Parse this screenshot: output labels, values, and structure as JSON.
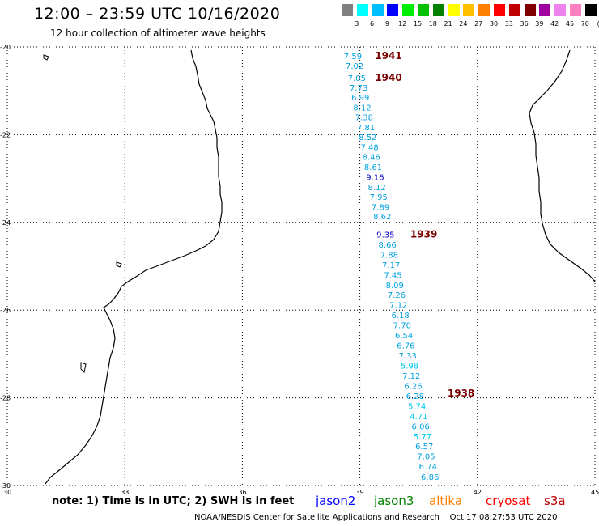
{
  "header": {
    "title": "12:00 – 23:59 UTC 10/16/2020",
    "subtitle": "12 hour collection of altimeter wave heights"
  },
  "colorbar": {
    "swatches": [
      "#808080",
      "#00ffff",
      "#00bfff",
      "#0000ff",
      "#00ee00",
      "#00c000",
      "#008000",
      "#ffff00",
      "#ffc000",
      "#ff8000",
      "#ff0000",
      "#c00000",
      "#800000",
      "#a000a0",
      "#ee82ee",
      "#ff80c0",
      "#000000"
    ],
    "labels": [
      "3",
      "6",
      "9",
      "12",
      "15",
      "18",
      "21",
      "24",
      "27",
      "30",
      "33",
      "36",
      "39",
      "42",
      "45",
      "70",
      "(ft)"
    ]
  },
  "axes": {
    "lat_labels": [
      "-20",
      "-22",
      "-24",
      "-26",
      "-28",
      "-30"
    ],
    "lon_labels": [
      "30",
      "33",
      "36",
      "39",
      "42",
      "45"
    ]
  },
  "passes": [
    {
      "label": "1941",
      "lat": -20.2,
      "lon": 38.85
    },
    {
      "label": "1940",
      "lat": -20.7,
      "lon": 38.85
    },
    {
      "label": "1939",
      "lat": -24.27,
      "lon": 39.75
    },
    {
      "label": "1938",
      "lat": -27.9,
      "lon": 40.7
    }
  ],
  "wave_heights": [
    {
      "value": "7.59",
      "lat": -20.2,
      "color": "#00a0e0"
    },
    {
      "value": "7.02",
      "lat": -20.42,
      "color": "#00a0e0"
    },
    {
      "value": "7.05",
      "lat": -20.7,
      "color": "#00a0e0"
    },
    {
      "value": "7.73",
      "lat": -20.92,
      "color": "#00a0e0"
    },
    {
      "value": "6.99",
      "lat": -21.14,
      "color": "#00a0e0"
    },
    {
      "value": "8.12",
      "lat": -21.37,
      "color": "#00a0e0"
    },
    {
      "value": "7.38",
      "lat": -21.6,
      "color": "#00a0e0"
    },
    {
      "value": "7.81",
      "lat": -21.83,
      "color": "#00a0e0"
    },
    {
      "value": "8.52",
      "lat": -22.05,
      "color": "#00a0e0"
    },
    {
      "value": "7.48",
      "lat": -22.28,
      "color": "#00a0e0"
    },
    {
      "value": "8.46",
      "lat": -22.5,
      "color": "#00a0e0"
    },
    {
      "value": "8.61",
      "lat": -22.73,
      "color": "#00a0e0"
    },
    {
      "value": "9.16",
      "lat": -22.96,
      "color": "#0000c0"
    },
    {
      "value": "8.12",
      "lat": -23.19,
      "color": "#00a0e0"
    },
    {
      "value": "7.95",
      "lat": -23.41,
      "color": "#00a0e0"
    },
    {
      "value": "7.89",
      "lat": -23.64,
      "color": "#00a0e0"
    },
    {
      "value": "8.62",
      "lat": -23.86,
      "color": "#00a0e0"
    },
    {
      "value": "9.35",
      "lat": -24.27,
      "color": "#0000c0"
    },
    {
      "value": "8.66",
      "lat": -24.5,
      "color": "#00a0e0"
    },
    {
      "value": "7.88",
      "lat": -24.73,
      "color": "#00a0e0"
    },
    {
      "value": "7.17",
      "lat": -24.96,
      "color": "#00a0e0"
    },
    {
      "value": "7.45",
      "lat": -25.19,
      "color": "#00a0e0"
    },
    {
      "value": "8.09",
      "lat": -25.42,
      "color": "#00a0e0"
    },
    {
      "value": "7.26",
      "lat": -25.65,
      "color": "#00a0e0"
    },
    {
      "value": "7.12",
      "lat": -25.88,
      "color": "#00a0e0"
    },
    {
      "value": "6.18",
      "lat": -26.11,
      "color": "#00a0e0"
    },
    {
      "value": "7.70",
      "lat": -26.34,
      "color": "#00a0e0"
    },
    {
      "value": "6.54",
      "lat": -26.57,
      "color": "#00a0e0"
    },
    {
      "value": "6.76",
      "lat": -26.8,
      "color": "#00a0e0"
    },
    {
      "value": "7.33",
      "lat": -27.03,
      "color": "#00a0e0"
    },
    {
      "value": "5.98",
      "lat": -27.26,
      "color": "#00c8f0"
    },
    {
      "value": "7.12",
      "lat": -27.49,
      "color": "#00a0e0"
    },
    {
      "value": "6.26",
      "lat": -27.72,
      "color": "#00a0e0"
    },
    {
      "value": "6.28",
      "lat": -27.95,
      "color": "#00a0e0"
    },
    {
      "value": "5.74",
      "lat": -28.18,
      "color": "#00c8f0"
    },
    {
      "value": "4.71",
      "lat": -28.41,
      "color": "#00c8f0"
    },
    {
      "value": "6.06",
      "lat": -28.64,
      "color": "#00a0e0"
    },
    {
      "value": "5.77",
      "lat": -28.87,
      "color": "#00c8f0"
    },
    {
      "value": "6.57",
      "lat": -29.1,
      "color": "#00a0e0"
    },
    {
      "value": "7.05",
      "lat": -29.33,
      "color": "#00a0e0"
    },
    {
      "value": "6.74",
      "lat": -29.56,
      "color": "#00a0e0"
    },
    {
      "value": "6.86",
      "lat": -29.8,
      "color": "#00a0e0"
    }
  ],
  "legend": {
    "note": "note: 1) Time is in UTC; 2) SWH is in feet",
    "satellites": [
      {
        "name": "jason2",
        "color": "#0000ff"
      },
      {
        "name": "jason3",
        "color": "#008000"
      },
      {
        "name": "altika",
        "color": "#ff8000"
      },
      {
        "name": "cryosat",
        "color": "#ff0000"
      },
      {
        "name": "s3a",
        "color": "#c00000"
      }
    ]
  },
  "footer": {
    "credit": "NOAA/NESDIS Center for Satellite Applications and Research",
    "timestamp": "Oct 17 08:27:53 UTC 2020"
  }
}
